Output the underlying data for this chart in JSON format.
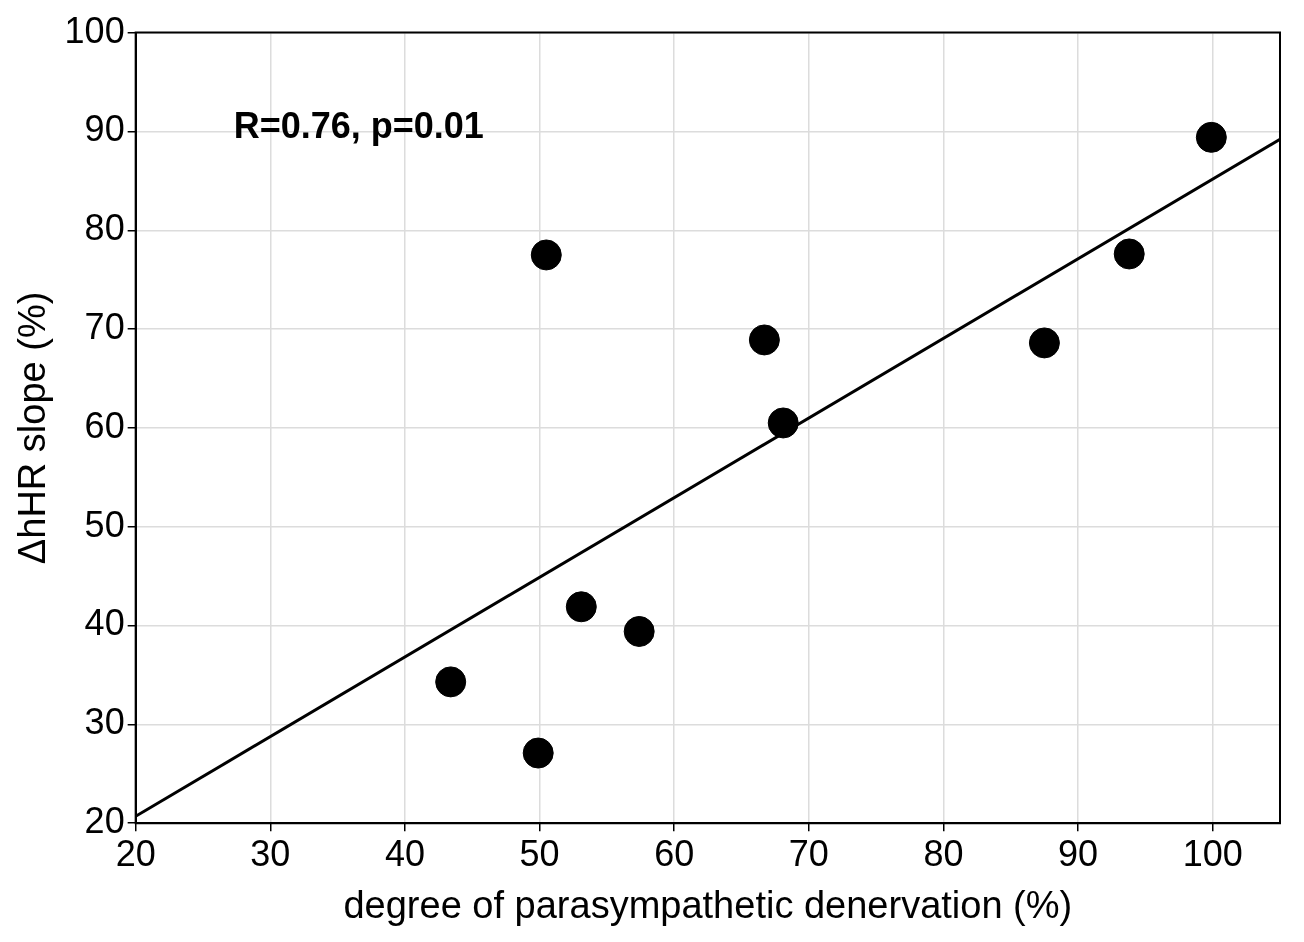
{
  "chart_data": {
    "type": "scatter",
    "xlabel": "degree of parasympathetic denervation (%)",
    "ylabel": "ΔhHR slope (%)",
    "annotations": [
      "R=0.76, p=0.01"
    ],
    "series": [
      {
        "color": "#000000",
        "marker": "circle",
        "x": [
          43.4,
          49.9,
          50.5,
          53.1,
          57.4,
          66.7,
          68.1,
          87.5,
          93.8,
          99.9
        ],
        "values": [
          34.3,
          27.1,
          77.5,
          41.9,
          39.4,
          68.9,
          60.5,
          68.6,
          77.6,
          89.4
        ]
      },
      {
        "type": "line",
        "marker": "none",
        "color": "#000000",
        "x": [
          20,
          105
        ],
        "values": [
          20.7,
          89.2
        ]
      }
    ],
    "xlim": [
      20,
      105
    ],
    "ylim": [
      20,
      100
    ],
    "xticks": [
      20,
      30,
      40,
      50,
      60,
      70,
      80,
      90,
      100
    ],
    "yticks": [
      20,
      30,
      40,
      50,
      60,
      70,
      80,
      90,
      100
    ],
    "grid": true,
    "line_style": "solid"
  }
}
